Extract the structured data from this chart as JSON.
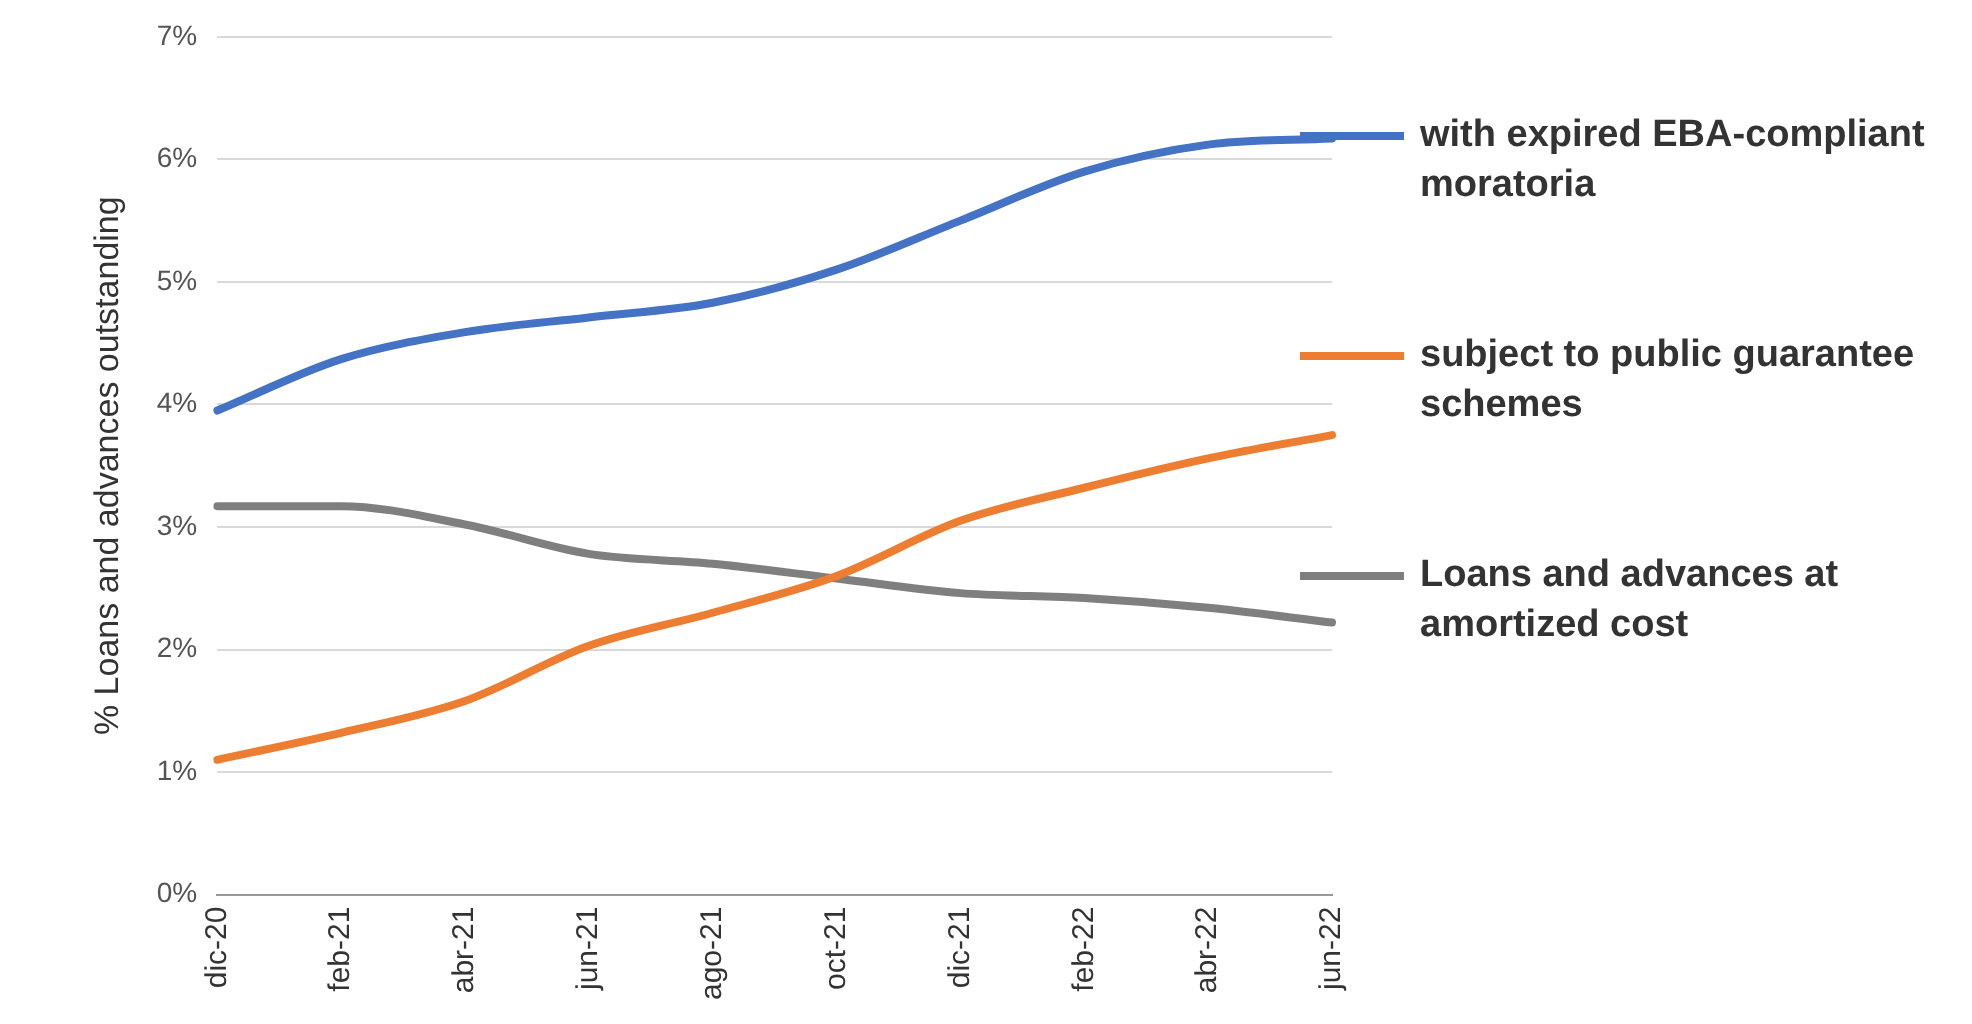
{
  "chart_data": {
    "type": "line",
    "ylabel": "% Loans and advances outstanding",
    "categories": [
      "dic-20",
      "feb-21",
      "abr-21",
      "jun-21",
      "ago-21",
      "oct-21",
      "dic-21",
      "feb-22",
      "abr-22",
      "jun-22"
    ],
    "series": [
      {
        "name": "with expired EBA-compliant moratoria",
        "color": "#4472c4",
        "values": [
          3.95,
          4.37,
          4.59,
          4.71,
          4.83,
          5.1,
          5.5,
          5.9,
          6.12,
          6.17
        ]
      },
      {
        "name": "subject to public guarantee schemes",
        "color": "#ed7d31",
        "values": [
          1.1,
          1.32,
          1.58,
          2.03,
          2.3,
          2.6,
          3.05,
          3.32,
          3.56,
          3.75
        ]
      },
      {
        "name": "Loans and advances at amortized cost",
        "color": "#7f7f7f",
        "values": [
          3.17,
          3.17,
          3.02,
          2.78,
          2.7,
          2.58,
          2.46,
          2.42,
          2.34,
          2.22
        ]
      }
    ],
    "ylim": [
      0,
      7
    ],
    "yticks": [
      {
        "value": 0,
        "label": "0%"
      },
      {
        "value": 1,
        "label": "1%"
      },
      {
        "value": 2,
        "label": "2%"
      },
      {
        "value": 3,
        "label": "3%"
      },
      {
        "value": 4,
        "label": "4%"
      },
      {
        "value": 5,
        "label": "5%"
      },
      {
        "value": 6,
        "label": "6%"
      },
      {
        "value": 7,
        "label": "7%"
      }
    ],
    "grid": "y",
    "legend": "right",
    "marker": "none",
    "line_style": "solid"
  }
}
